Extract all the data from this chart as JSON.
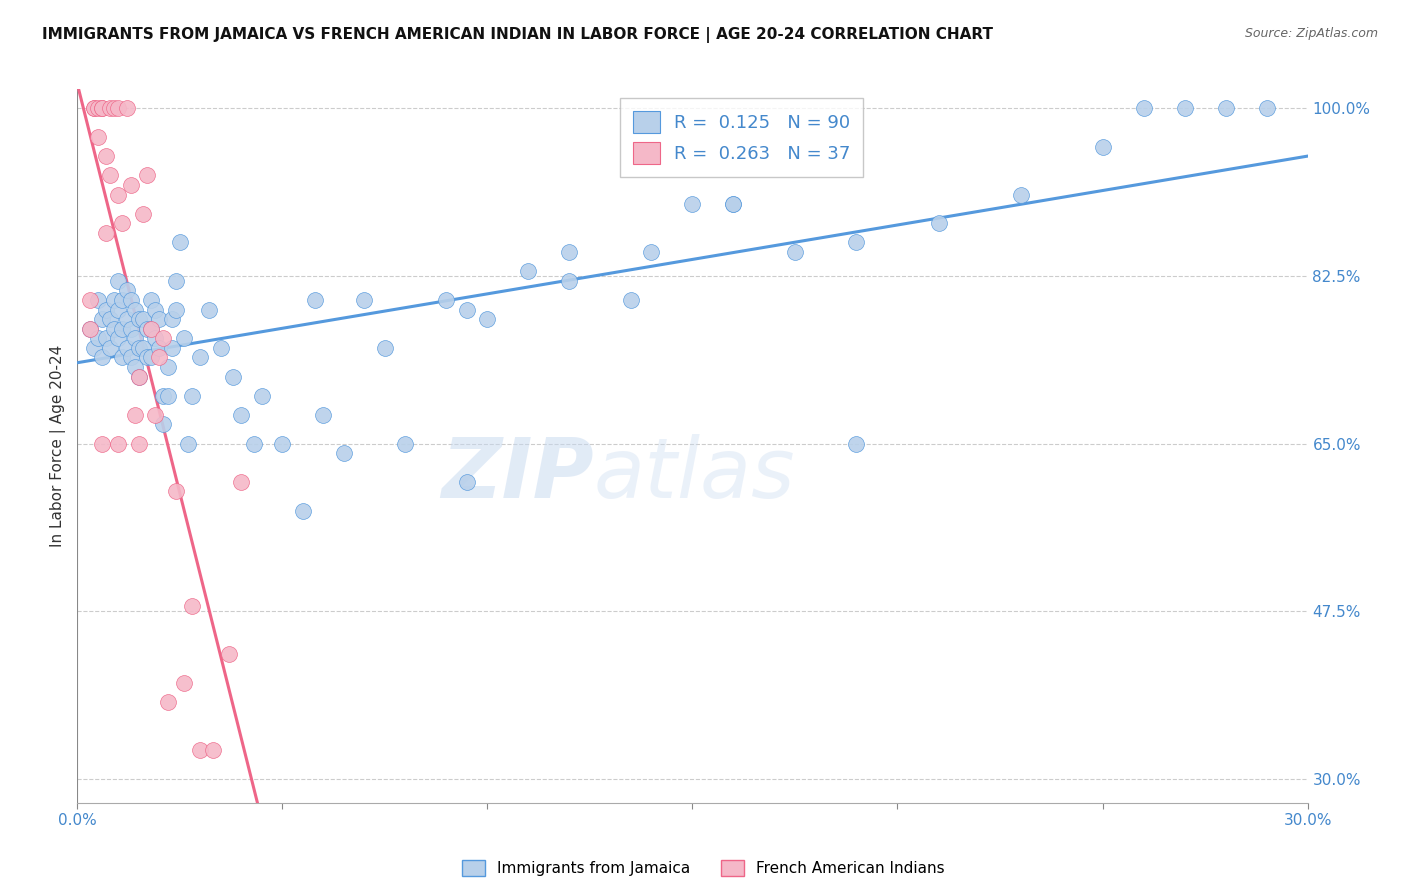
{
  "title": "IMMIGRANTS FROM JAMAICA VS FRENCH AMERICAN INDIAN IN LABOR FORCE | AGE 20-24 CORRELATION CHART",
  "source": "Source: ZipAtlas.com",
  "ylabel": "In Labor Force | Age 20-24",
  "xlim": [
    0.0,
    0.3
  ],
  "ylim": [
    0.275,
    1.02
  ],
  "xticks": [
    0.0,
    0.05,
    0.1,
    0.15,
    0.2,
    0.25,
    0.3
  ],
  "xticklabels": [
    "0.0%",
    "",
    "",
    "",
    "",
    "",
    "30.0%"
  ],
  "yticks_right": [
    1.0,
    0.825,
    0.65,
    0.475,
    0.3
  ],
  "yticklabels_right": [
    "100.0%",
    "82.5%",
    "65.0%",
    "47.5%",
    "30.0%"
  ],
  "blue_R": 0.125,
  "blue_N": 90,
  "pink_R": 0.263,
  "pink_N": 37,
  "blue_color": "#b8d0ea",
  "pink_color": "#f5b8c8",
  "blue_line_color": "#5599dd",
  "pink_line_color": "#ee6688",
  "legend_label_blue": "Immigrants from Jamaica",
  "legend_label_pink": "French American Indians",
  "blue_x": [
    0.003,
    0.004,
    0.005,
    0.005,
    0.006,
    0.006,
    0.007,
    0.007,
    0.008,
    0.008,
    0.009,
    0.009,
    0.01,
    0.01,
    0.01,
    0.011,
    0.011,
    0.011,
    0.012,
    0.012,
    0.012,
    0.013,
    0.013,
    0.013,
    0.014,
    0.014,
    0.014,
    0.015,
    0.015,
    0.015,
    0.016,
    0.016,
    0.017,
    0.017,
    0.018,
    0.018,
    0.018,
    0.019,
    0.019,
    0.02,
    0.02,
    0.021,
    0.021,
    0.022,
    0.022,
    0.023,
    0.023,
    0.024,
    0.024,
    0.025,
    0.026,
    0.027,
    0.028,
    0.03,
    0.032,
    0.035,
    0.038,
    0.04,
    0.043,
    0.045,
    0.05,
    0.055,
    0.058,
    0.06,
    0.065,
    0.07,
    0.075,
    0.08,
    0.09,
    0.095,
    0.1,
    0.11,
    0.12,
    0.135,
    0.15,
    0.16,
    0.175,
    0.19,
    0.21,
    0.23,
    0.25,
    0.26,
    0.27,
    0.28,
    0.29,
    0.19,
    0.16,
    0.14,
    0.12,
    0.095
  ],
  "blue_y": [
    0.77,
    0.75,
    0.8,
    0.76,
    0.78,
    0.74,
    0.79,
    0.76,
    0.78,
    0.75,
    0.8,
    0.77,
    0.82,
    0.79,
    0.76,
    0.8,
    0.77,
    0.74,
    0.81,
    0.78,
    0.75,
    0.8,
    0.77,
    0.74,
    0.79,
    0.76,
    0.73,
    0.78,
    0.75,
    0.72,
    0.78,
    0.75,
    0.77,
    0.74,
    0.8,
    0.77,
    0.74,
    0.79,
    0.76,
    0.78,
    0.75,
    0.7,
    0.67,
    0.73,
    0.7,
    0.78,
    0.75,
    0.82,
    0.79,
    0.86,
    0.76,
    0.65,
    0.7,
    0.74,
    0.79,
    0.75,
    0.72,
    0.68,
    0.65,
    0.7,
    0.65,
    0.58,
    0.8,
    0.68,
    0.64,
    0.8,
    0.75,
    0.65,
    0.8,
    0.79,
    0.78,
    0.83,
    0.85,
    0.8,
    0.9,
    0.9,
    0.85,
    0.86,
    0.88,
    0.91,
    0.96,
    1.0,
    1.0,
    1.0,
    1.0,
    0.65,
    0.9,
    0.85,
    0.82,
    0.61
  ],
  "pink_x": [
    0.003,
    0.003,
    0.004,
    0.004,
    0.005,
    0.005,
    0.006,
    0.006,
    0.007,
    0.007,
    0.008,
    0.008,
    0.009,
    0.01,
    0.01,
    0.011,
    0.012,
    0.013,
    0.014,
    0.015,
    0.016,
    0.017,
    0.018,
    0.019,
    0.02,
    0.021,
    0.022,
    0.024,
    0.026,
    0.028,
    0.03,
    0.033,
    0.037,
    0.04,
    0.006,
    0.01,
    0.015
  ],
  "pink_y": [
    0.8,
    0.77,
    1.0,
    1.0,
    1.0,
    0.97,
    1.0,
    1.0,
    0.95,
    0.87,
    1.0,
    0.93,
    1.0,
    1.0,
    0.91,
    0.88,
    1.0,
    0.92,
    0.68,
    0.65,
    0.89,
    0.93,
    0.77,
    0.68,
    0.74,
    0.76,
    0.38,
    0.6,
    0.4,
    0.48,
    0.33,
    0.33,
    0.43,
    0.61,
    0.65,
    0.65,
    0.72
  ],
  "watermark_zip": "ZIP",
  "watermark_atlas": "atlas",
  "bg_color": "#ffffff",
  "grid_color": "#cccccc",
  "legend_box_color": "#4488cc",
  "legend_r_color": "#4488cc",
  "tick_label_color": "#4488cc"
}
